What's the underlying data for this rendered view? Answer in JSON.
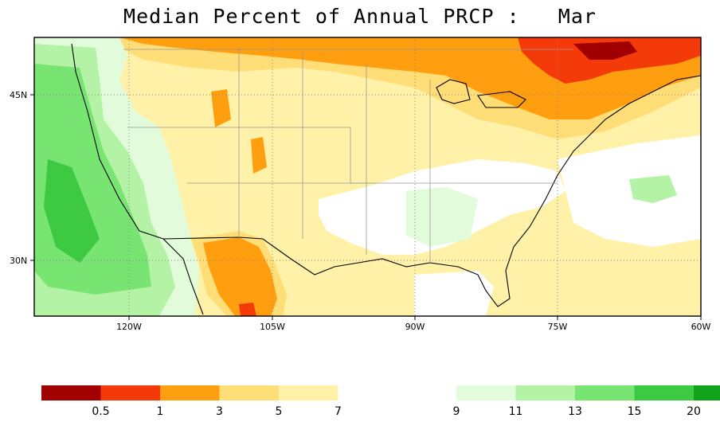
{
  "title": "Median Percent of Annual PRCP :   Mar",
  "map": {
    "type": "contour-filled-map",
    "region": "Contiguous United States",
    "grid": true,
    "lat_labels": [
      "45N",
      "30N"
    ],
    "lon_labels": [
      "120W",
      "105W",
      "90W",
      "75W",
      "60W"
    ]
  },
  "legend": {
    "bins": [
      {
        "color": "#a00000",
        "label": ""
      },
      {
        "color": "#f53a0a",
        "label": "0.5"
      },
      {
        "color": "#ff9e0f",
        "label": "1"
      },
      {
        "color": "#ffdd77",
        "label": "3"
      },
      {
        "color": "#fff2a8",
        "label": "5"
      },
      {
        "color": "#ffffff",
        "label": "7"
      },
      {
        "color": "#e2fbdb",
        "label": "9"
      },
      {
        "color": "#b4f2a6",
        "label": "11"
      },
      {
        "color": "#78e573",
        "label": "13"
      },
      {
        "color": "#3ec943",
        "label": "15"
      },
      {
        "color": "#12a31c",
        "label": "20"
      }
    ]
  }
}
